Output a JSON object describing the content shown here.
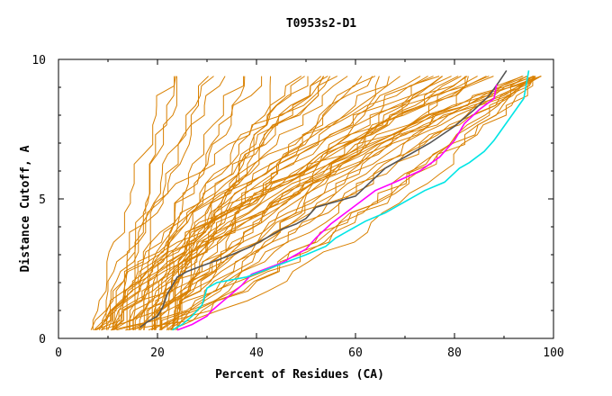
{
  "chart_data": {
    "type": "line",
    "title": "T0953s2-D1",
    "xlabel": "Percent of Residues (CA)",
    "ylabel": "Distance Cutoff, A",
    "xlim": [
      0,
      100
    ],
    "ylim": [
      0,
      10
    ],
    "x_ticks": [
      "0",
      "20",
      "40",
      "60",
      "80",
      "100"
    ],
    "y_ticks": [
      "0",
      "5",
      "10"
    ],
    "colors": {
      "background_series": "#d98000",
      "gray": "#555555",
      "magenta": "#ff00ff",
      "cyan": "#00e5e5",
      "axis": "#000000"
    },
    "highlight_series": [
      {
        "name": "gray",
        "x": [
          16.5,
          18,
          20,
          21,
          22,
          24,
          26,
          29,
          32,
          35,
          39,
          42,
          45,
          48,
          50,
          52,
          56,
          60,
          63,
          66,
          70,
          75,
          80,
          84,
          87,
          89,
          90.5
        ],
        "y": [
          0.4,
          0.6,
          0.8,
          1.1,
          1.6,
          2.2,
          2.4,
          2.6,
          2.8,
          3.0,
          3.3,
          3.6,
          3.9,
          4.1,
          4.3,
          4.7,
          4.9,
          5.1,
          5.6,
          6.1,
          6.5,
          7.0,
          7.6,
          8.2,
          8.7,
          9.2,
          9.6
        ]
      },
      {
        "name": "magenta",
        "x": [
          24,
          27,
          30,
          31,
          33,
          35,
          37,
          39,
          42,
          45,
          48,
          50,
          52,
          55,
          58,
          61,
          64,
          68,
          73,
          77,
          80,
          82,
          85,
          88,
          88.5
        ],
        "y": [
          0.3,
          0.5,
          0.8,
          1.0,
          1.3,
          1.6,
          1.9,
          2.3,
          2.5,
          2.7,
          3.0,
          3.2,
          3.6,
          4.1,
          4.5,
          4.9,
          5.3,
          5.6,
          6.0,
          6.5,
          7.1,
          7.7,
          8.2,
          8.6,
          9.1
        ]
      },
      {
        "name": "cyan",
        "x": [
          23,
          25,
          27,
          29,
          29.5,
          30,
          32,
          35,
          38,
          41,
          44,
          47,
          50,
          54,
          56,
          59,
          62,
          66,
          70,
          74,
          78,
          81,
          83,
          86,
          88,
          90,
          92,
          94,
          94.5,
          95
        ],
        "y": [
          0.3,
          0.5,
          0.8,
          1.2,
          1.5,
          1.8,
          2.0,
          2.1,
          2.2,
          2.4,
          2.6,
          2.8,
          3.0,
          3.3,
          3.6,
          3.9,
          4.2,
          4.5,
          4.9,
          5.3,
          5.6,
          6.1,
          6.3,
          6.7,
          7.1,
          7.6,
          8.1,
          8.6,
          9.1,
          9.6
        ]
      }
    ]
  }
}
